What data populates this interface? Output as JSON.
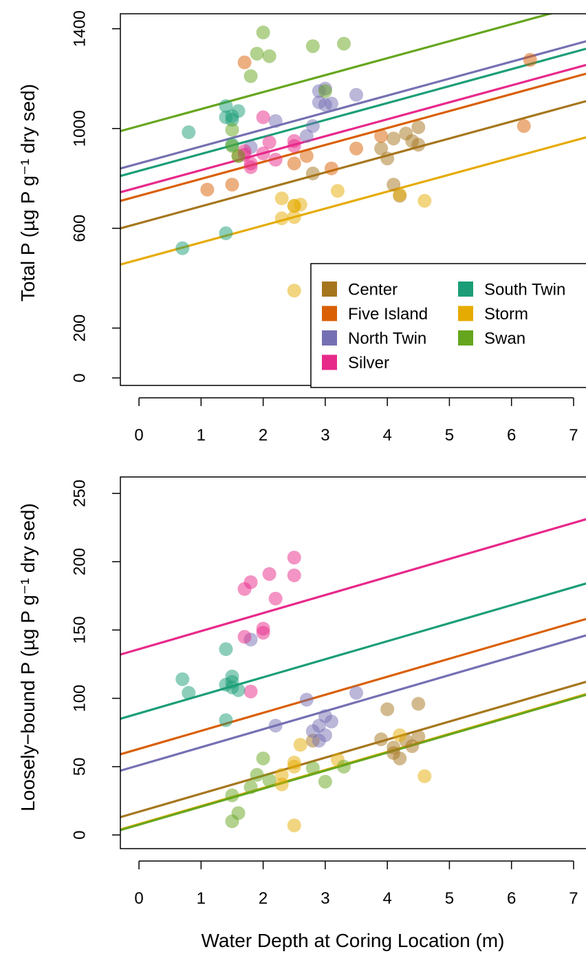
{
  "xlabel": "Water Depth at Coring Location (m)",
  "lakes": [
    {
      "name": "Center",
      "color": "#A6761D"
    },
    {
      "name": "Five Island",
      "color": "#D95F02"
    },
    {
      "name": "North Twin",
      "color": "#7570B3"
    },
    {
      "name": "Silver",
      "color": "#E7298A"
    },
    {
      "name": "South Twin",
      "color": "#1B9E77"
    },
    {
      "name": "Storm",
      "color": "#E6AB02"
    },
    {
      "name": "Swan",
      "color": "#66A61E"
    }
  ],
  "chart_data": [
    {
      "type": "scatter",
      "ylabel": "Total P (µg P g⁻¹ dry sed)",
      "xlim": [
        -0.3,
        7.2
      ],
      "ylim": [
        -30,
        1460
      ],
      "xticks": [
        0,
        1,
        2,
        3,
        4,
        5,
        6,
        7
      ],
      "yticks": [
        0,
        200,
        600,
        1000,
        1400
      ],
      "grid": false,
      "legend": "bottom-right",
      "fit_lines": [
        {
          "series": "Center",
          "intercept": 620,
          "slope": 68
        },
        {
          "series": "Five Island",
          "intercept": 730,
          "slope": 68
        },
        {
          "series": "North Twin",
          "intercept": 860,
          "slope": 68
        },
        {
          "series": "Silver",
          "intercept": 765,
          "slope": 68
        },
        {
          "series": "South Twin",
          "intercept": 830,
          "slope": 68
        },
        {
          "series": "Storm",
          "intercept": 475,
          "slope": 68
        },
        {
          "series": "Swan",
          "intercept": 1010,
          "slope": 68
        }
      ],
      "series": [
        {
          "name": "Center",
          "points": [
            [
              1.6,
              890
            ],
            [
              2.8,
              820
            ],
            [
              3.9,
              920
            ],
            [
              4.0,
              880
            ],
            [
              4.1,
              960
            ],
            [
              4.2,
              730
            ],
            [
              4.3,
              980
            ],
            [
              4.4,
              950
            ],
            [
              4.5,
              1005
            ],
            [
              4.5,
              935
            ],
            [
              4.1,
              775
            ]
          ]
        },
        {
          "name": "Five Island",
          "points": [
            [
              1.1,
              755
            ],
            [
              1.5,
              775
            ],
            [
              1.7,
              1265
            ],
            [
              2.5,
              860
            ],
            [
              2.7,
              890
            ],
            [
              3.1,
              840
            ],
            [
              3.5,
              920
            ],
            [
              3.9,
              970
            ],
            [
              6.2,
              1010
            ],
            [
              6.3,
              1275
            ]
          ]
        },
        {
          "name": "North Twin",
          "points": [
            [
              1.8,
              925
            ],
            [
              2.2,
              1030
            ],
            [
              2.7,
              970
            ],
            [
              2.8,
              1010
            ],
            [
              2.9,
              1150
            ],
            [
              2.9,
              1105
            ],
            [
              3.0,
              1095
            ],
            [
              3.0,
              1160
            ],
            [
              3.1,
              1100
            ],
            [
              3.5,
              1135
            ]
          ]
        },
        {
          "name": "Silver",
          "points": [
            [
              1.7,
              910
            ],
            [
              1.8,
              860
            ],
            [
              1.8,
              845
            ],
            [
              2.0,
              900
            ],
            [
              2.0,
              1045
            ],
            [
              2.1,
              945
            ],
            [
              2.2,
              875
            ],
            [
              2.5,
              950
            ],
            [
              2.5,
              930
            ],
            [
              1.7,
              895
            ]
          ]
        },
        {
          "name": "South Twin",
          "points": [
            [
              0.7,
              520
            ],
            [
              0.8,
              985
            ],
            [
              1.4,
              580
            ],
            [
              1.4,
              1090
            ],
            [
              1.4,
              1045
            ],
            [
              1.5,
              1050
            ],
            [
              1.5,
              1035
            ],
            [
              1.6,
              1070
            ],
            [
              1.5,
              935
            ]
          ]
        },
        {
          "name": "Storm",
          "points": [
            [
              2.3,
              720
            ],
            [
              2.3,
              640
            ],
            [
              2.5,
              645
            ],
            [
              2.5,
              690
            ],
            [
              2.5,
              690
            ],
            [
              2.6,
              695
            ],
            [
              3.2,
              750
            ],
            [
              4.2,
              735
            ],
            [
              4.6,
              710
            ],
            [
              2.5,
              350
            ]
          ]
        },
        {
          "name": "Swan",
          "points": [
            [
              1.5,
              995
            ],
            [
              1.5,
              930
            ],
            [
              1.8,
              1210
            ],
            [
              1.9,
              1300
            ],
            [
              2.0,
              1385
            ],
            [
              2.1,
              1290
            ],
            [
              2.8,
              1330
            ],
            [
              3.0,
              1150
            ],
            [
              3.3,
              1340
            ],
            [
              1.6,
              890
            ]
          ]
        }
      ]
    },
    {
      "type": "scatter",
      "ylabel": "Loosely−bound P (µg P g⁻¹ dry sed)",
      "xlim": [
        -0.3,
        7.2
      ],
      "ylim": [
        -10,
        262
      ],
      "xticks": [
        0,
        1,
        2,
        3,
        4,
        5,
        6,
        7
      ],
      "yticks": [
        0,
        50,
        100,
        150,
        200,
        250
      ],
      "grid": false,
      "fit_lines": [
        {
          "series": "Center",
          "intercept": 17,
          "slope": 13.2
        },
        {
          "series": "Five Island",
          "intercept": 63,
          "slope": 13.2
        },
        {
          "series": "North Twin",
          "intercept": 51,
          "slope": 13.2
        },
        {
          "series": "Silver",
          "intercept": 136,
          "slope": 13.2
        },
        {
          "series": "South Twin",
          "intercept": 89,
          "slope": 13.2
        },
        {
          "series": "Storm",
          "intercept": 8,
          "slope": 13.2
        },
        {
          "series": "Swan",
          "intercept": 7.5,
          "slope": 13.2
        }
      ],
      "series": [
        {
          "name": "Center",
          "points": [
            [
              2.8,
              69
            ],
            [
              3.9,
              70
            ],
            [
              4.0,
              92
            ],
            [
              4.1,
              64
            ],
            [
              4.1,
              60
            ],
            [
              4.2,
              56
            ],
            [
              4.3,
              69
            ],
            [
              4.4,
              65
            ],
            [
              4.5,
              72
            ],
            [
              4.5,
              96
            ]
          ]
        },
        {
          "name": "Five Island",
          "points": []
        },
        {
          "name": "North Twin",
          "points": [
            [
              1.8,
              143
            ],
            [
              2.2,
              80
            ],
            [
              2.7,
              99
            ],
            [
              2.8,
              76
            ],
            [
              2.9,
              80
            ],
            [
              2.9,
              69
            ],
            [
              3.0,
              73
            ],
            [
              3.0,
              87
            ],
            [
              3.1,
              83
            ],
            [
              3.5,
              104
            ]
          ]
        },
        {
          "name": "Silver",
          "points": [
            [
              1.7,
              145
            ],
            [
              1.7,
              180
            ],
            [
              1.8,
              185
            ],
            [
              1.8,
              105
            ],
            [
              2.0,
              148
            ],
            [
              2.0,
              151
            ],
            [
              2.1,
              191
            ],
            [
              2.2,
              173
            ],
            [
              2.5,
              203
            ],
            [
              2.5,
              190
            ]
          ]
        },
        {
          "name": "South Twin",
          "points": [
            [
              0.7,
              114
            ],
            [
              0.8,
              104
            ],
            [
              1.4,
              136
            ],
            [
              1.4,
              110
            ],
            [
              1.4,
              84
            ],
            [
              1.5,
              116
            ],
            [
              1.5,
              112
            ],
            [
              1.5,
              108
            ],
            [
              1.6,
              106
            ]
          ]
        },
        {
          "name": "Storm",
          "points": [
            [
              2.3,
              37
            ],
            [
              2.3,
              44
            ],
            [
              2.5,
              50
            ],
            [
              2.5,
              53
            ],
            [
              2.6,
              66
            ],
            [
              3.2,
              55
            ],
            [
              4.2,
              73
            ],
            [
              4.6,
              43
            ],
            [
              2.5,
              7
            ]
          ]
        },
        {
          "name": "Swan",
          "points": [
            [
              1.5,
              10
            ],
            [
              1.5,
              29
            ],
            [
              1.6,
              16
            ],
            [
              1.8,
              35
            ],
            [
              1.9,
              44
            ],
            [
              2.0,
              56
            ],
            [
              2.1,
              40
            ],
            [
              2.8,
              49
            ],
            [
              3.0,
              39
            ],
            [
              3.3,
              50
            ]
          ]
        }
      ]
    }
  ]
}
